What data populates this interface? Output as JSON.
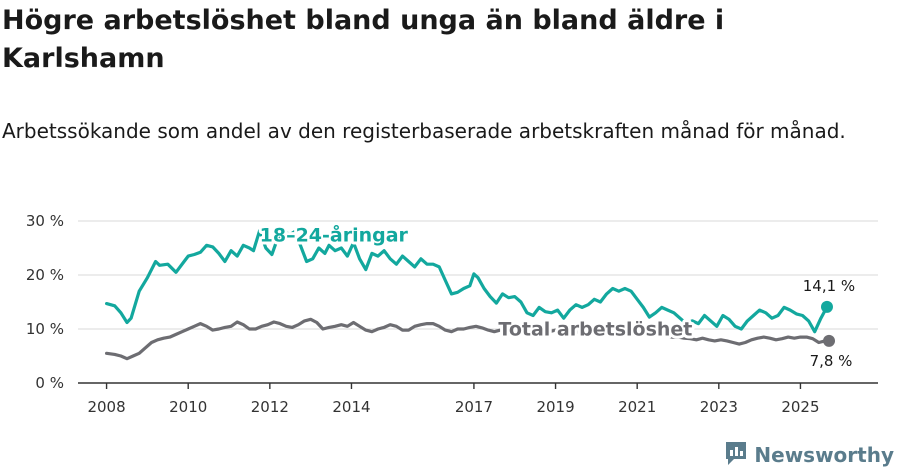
{
  "title": "Högre arbetslöshet bland unga än bland äldre i Karlshamn",
  "subtitle": "Arbetssökande som andel av den registerbaserade arbetskraften månad för månad.",
  "brand": {
    "name": "Newsworthy",
    "icon": "newsworthy-logo-icon",
    "color": "#5a7c8c"
  },
  "chart_data": {
    "type": "line",
    "title": "Högre arbetslöshet bland unga än bland äldre i Karlshamn",
    "subtitle": "Arbetssökande som andel av den registerbaserade arbetskraften månad för månad.",
    "xlabel": "",
    "ylabel": "",
    "xlim": [
      2007.3,
      2026.9
    ],
    "ylim": [
      0,
      30
    ],
    "grid": true,
    "yticks": [
      0,
      10,
      20,
      30
    ],
    "ytick_labels": [
      "0 %",
      "10 %",
      "20 %",
      "30 %"
    ],
    "xticks": [
      2008,
      2010,
      2012,
      2014,
      2017,
      2019,
      2021,
      2023,
      2025
    ],
    "xtick_labels": [
      "2008",
      "2010",
      "2012",
      "2014",
      "2017",
      "2019",
      "2021",
      "2023",
      "2025"
    ],
    "series": [
      {
        "name": "18–24-åringar",
        "label": "18–24-åringar",
        "color": "#13a89e",
        "end_label": "14,1 %",
        "x": [
          2008.0,
          2008.2,
          2008.35,
          2008.5,
          2008.6,
          2008.8,
          2009.0,
          2009.2,
          2009.3,
          2009.5,
          2009.7,
          2009.9,
          2010.0,
          2010.15,
          2010.3,
          2010.45,
          2010.6,
          2010.75,
          2010.9,
          2011.05,
          2011.2,
          2011.35,
          2011.5,
          2011.6,
          2011.75,
          2011.9,
          2012.05,
          2012.2,
          2012.35,
          2012.5,
          2012.6,
          2012.75,
          2012.9,
          2013.05,
          2013.2,
          2013.35,
          2013.45,
          2013.6,
          2013.75,
          2013.9,
          2014.05,
          2014.2,
          2014.35,
          2014.5,
          2014.65,
          2014.8,
          2014.95,
          2015.1,
          2015.25,
          2015.4,
          2015.55,
          2015.7,
          2015.85,
          2016.0,
          2016.15,
          2016.3,
          2016.45,
          2016.6,
          2016.75,
          2016.9,
          2017.0,
          2017.1,
          2017.25,
          2017.4,
          2017.55,
          2017.7,
          2017.85,
          2018.0,
          2018.15,
          2018.3,
          2018.45,
          2018.6,
          2018.75,
          2018.9,
          2019.05,
          2019.2,
          2019.35,
          2019.5,
          2019.65,
          2019.8,
          2019.95,
          2020.1,
          2020.25,
          2020.4,
          2020.55,
          2020.7,
          2020.85,
          2021.0,
          2021.15,
          2021.3,
          2021.45,
          2021.6,
          2021.75,
          2021.9,
          2022.05,
          2022.2,
          2022.35,
          2022.5,
          2022.65,
          2022.8,
          2022.95,
          2023.1,
          2023.25,
          2023.4,
          2023.55,
          2023.7,
          2023.85,
          2024.0,
          2024.15,
          2024.3,
          2024.45,
          2024.6,
          2024.75,
          2024.9,
          2025.05,
          2025.2,
          2025.35,
          2025.5,
          2025.65
        ],
        "values": [
          14.7,
          14.3,
          13.0,
          11.2,
          12.0,
          17.0,
          19.5,
          22.5,
          21.8,
          22.0,
          20.5,
          22.5,
          23.5,
          23.8,
          24.2,
          25.5,
          25.2,
          24.0,
          22.5,
          24.5,
          23.5,
          25.5,
          25.0,
          24.5,
          28.2,
          25.0,
          23.8,
          27.0,
          28.0,
          27.5,
          28.0,
          25.5,
          22.5,
          23.0,
          25.0,
          24.0,
          25.5,
          24.5,
          25.0,
          23.5,
          26.0,
          23.0,
          21.0,
          24.0,
          23.5,
          24.5,
          23.0,
          22.0,
          23.5,
          22.5,
          21.5,
          23.0,
          22.0,
          22.0,
          21.5,
          19.0,
          16.5,
          16.8,
          17.5,
          18.0,
          20.2,
          19.5,
          17.5,
          16.0,
          14.8,
          16.5,
          15.8,
          16.0,
          15.0,
          13.0,
          12.5,
          14.0,
          13.2,
          13.0,
          13.5,
          12.0,
          13.5,
          14.5,
          14.0,
          14.5,
          15.5,
          15.0,
          16.5,
          17.5,
          17.0,
          17.5,
          17.0,
          15.5,
          14.0,
          12.2,
          13.0,
          14.0,
          13.5,
          13.0,
          12.0,
          11.0,
          11.5,
          11.0,
          12.5,
          11.5,
          10.5,
          12.5,
          11.8,
          10.5,
          10.0,
          11.5,
          12.5,
          13.5,
          13.0,
          12.0,
          12.5,
          14.0,
          13.5,
          12.8,
          12.5,
          11.5,
          9.5,
          12.0,
          14.1
        ]
      },
      {
        "name": "Total arbetslöshet",
        "label": "Total arbetslöshet",
        "color": "#6d6d72",
        "end_label": "7,8 %",
        "x": [
          2008.0,
          2008.2,
          2008.35,
          2008.5,
          2008.65,
          2008.8,
          2008.95,
          2009.1,
          2009.25,
          2009.4,
          2009.55,
          2009.7,
          2009.85,
          2010.0,
          2010.15,
          2010.3,
          2010.45,
          2010.6,
          2010.75,
          2010.9,
          2011.05,
          2011.2,
          2011.35,
          2011.5,
          2011.65,
          2011.8,
          2011.95,
          2012.1,
          2012.25,
          2012.4,
          2012.55,
          2012.7,
          2012.85,
          2013.0,
          2013.15,
          2013.3,
          2013.45,
          2013.6,
          2013.75,
          2013.9,
          2014.05,
          2014.2,
          2014.35,
          2014.5,
          2014.65,
          2014.8,
          2014.95,
          2015.1,
          2015.25,
          2015.4,
          2015.55,
          2015.7,
          2015.85,
          2016.0,
          2016.15,
          2016.3,
          2016.45,
          2016.6,
          2016.75,
          2016.9,
          2017.05,
          2017.2,
          2017.35,
          2017.5,
          2017.65,
          2017.8,
          2017.95,
          2018.1,
          2018.25,
          2018.4,
          2018.55,
          2018.7,
          2018.85,
          2019.0,
          2019.15,
          2019.3,
          2019.45,
          2019.6,
          2019.75,
          2019.9,
          2020.05,
          2020.2,
          2020.35,
          2020.5,
          2020.65,
          2020.8,
          2020.95,
          2021.1,
          2021.25,
          2021.4,
          2021.55,
          2021.7,
          2021.85,
          2022.0,
          2022.15,
          2022.3,
          2022.45,
          2022.6,
          2022.75,
          2022.9,
          2023.05,
          2023.2,
          2023.35,
          2023.5,
          2023.65,
          2023.8,
          2023.95,
          2024.1,
          2024.25,
          2024.4,
          2024.55,
          2024.7,
          2024.85,
          2025.0,
          2025.15,
          2025.3,
          2025.45,
          2025.6,
          2025.7
        ],
        "values": [
          5.5,
          5.3,
          5.0,
          4.5,
          5.0,
          5.5,
          6.5,
          7.5,
          8.0,
          8.3,
          8.5,
          9.0,
          9.5,
          10.0,
          10.5,
          11.0,
          10.5,
          9.8,
          10.0,
          10.3,
          10.5,
          11.3,
          10.8,
          10.0,
          10.0,
          10.5,
          10.8,
          11.3,
          11.0,
          10.5,
          10.3,
          10.8,
          11.5,
          11.8,
          11.2,
          10.0,
          10.3,
          10.5,
          10.8,
          10.5,
          11.2,
          10.5,
          9.8,
          9.5,
          10.0,
          10.3,
          10.8,
          10.5,
          9.8,
          9.8,
          10.5,
          10.8,
          11.0,
          11.0,
          10.5,
          9.8,
          9.5,
          10.0,
          10.0,
          10.3,
          10.5,
          10.2,
          9.8,
          9.5,
          9.8,
          9.8,
          10.0,
          10.0,
          9.5,
          9.5,
          9.8,
          9.5,
          9.5,
          9.8,
          9.8,
          9.5,
          9.3,
          9.5,
          9.5,
          9.8,
          10.5,
          10.3,
          10.0,
          10.2,
          10.5,
          10.0,
          9.8,
          9.5,
          9.2,
          9.0,
          9.0,
          8.8,
          8.5,
          8.5,
          8.3,
          8.2,
          8.0,
          8.3,
          8.0,
          7.8,
          8.0,
          7.8,
          7.5,
          7.2,
          7.5,
          8.0,
          8.3,
          8.5,
          8.3,
          8.0,
          8.2,
          8.5,
          8.3,
          8.5,
          8.5,
          8.2,
          7.5,
          7.8,
          7.8
        ]
      }
    ]
  }
}
